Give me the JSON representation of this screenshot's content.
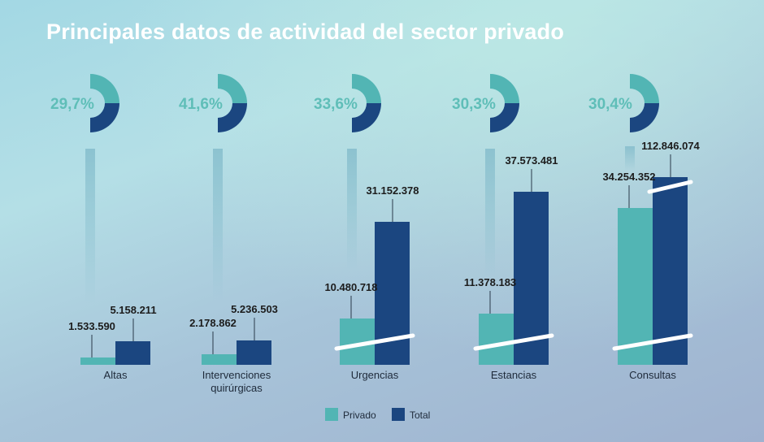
{
  "title": "Principales datos de actividad del sector privado",
  "colors": {
    "privado": "#52b5b4",
    "total": "#1b4680",
    "percent_text": "#5fbeb8",
    "break_line": "#ffffff"
  },
  "chart_data": {
    "type": "bar",
    "title": "Principales datos de actividad del sector privado",
    "categories": [
      {
        "label_lines": [
          "Altas"
        ],
        "privado": 1533590,
        "total": 5158211,
        "privado_label": "1.533.590",
        "total_label": "5.158.211",
        "share": 29.7,
        "share_label": "29,7%",
        "broken_axis": false
      },
      {
        "label_lines": [
          "Intervenciones",
          "quirúrgicas"
        ],
        "privado": 2178862,
        "total": 5236503,
        "privado_label": "2.178.862",
        "total_label": "5.236.503",
        "share": 41.6,
        "share_label": "41,6%",
        "broken_axis": false
      },
      {
        "label_lines": [
          "Urgencias"
        ],
        "privado": 10480718,
        "total": 31152378,
        "privado_label": "10.480.718",
        "total_label": "31.152.378",
        "share": 33.6,
        "share_label": "33,6%",
        "broken_axis": true
      },
      {
        "label_lines": [
          "Estancias"
        ],
        "privado": 11378183,
        "total": 37573481,
        "privado_label": "11.378.183",
        "total_label": "37.573.481",
        "share": 30.3,
        "share_label": "30,3%",
        "broken_axis": true
      },
      {
        "label_lines": [
          "Consultas"
        ],
        "privado": 34254352,
        "total": 112846074,
        "privado_label": "34.254.352",
        "total_label": "112.846.074",
        "share": 30.4,
        "share_label": "30,4%",
        "broken_axis": true
      }
    ],
    "series": [
      {
        "name": "Privado",
        "key": "privado"
      },
      {
        "name": "Total",
        "key": "total"
      }
    ],
    "legend_position": "bottom",
    "grid": false
  }
}
